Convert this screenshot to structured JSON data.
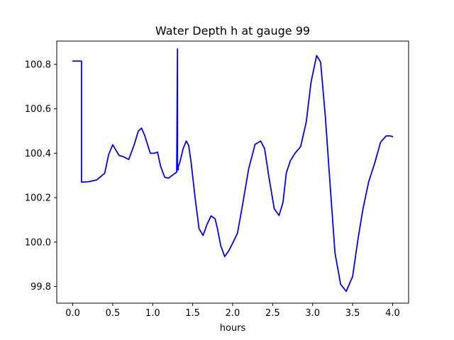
{
  "chart_data": {
    "type": "line",
    "title": "Water Depth h at gauge 99",
    "xlabel": "hours",
    "ylabel": "",
    "xlim": [
      -0.2,
      4.2
    ],
    "ylim": [
      99.725,
      100.905
    ],
    "xticks": [
      0.0,
      0.5,
      1.0,
      1.5,
      2.0,
      2.5,
      3.0,
      3.5,
      4.0
    ],
    "xtick_labels": [
      "0.0",
      "0.5",
      "1.0",
      "1.5",
      "2.0",
      "2.5",
      "3.0",
      "3.5",
      "4.0"
    ],
    "yticks": [
      99.8,
      100.0,
      100.2,
      100.4,
      100.6,
      100.8
    ],
    "ytick_labels": [
      "99.8",
      "100.0",
      "100.2",
      "100.4",
      "100.6",
      "100.8"
    ],
    "grid": false,
    "series": [
      {
        "color": "#0000ff",
        "x": [
          0.0,
          0.11,
          0.11,
          0.2,
          0.3,
          0.4,
          0.45,
          0.5,
          0.53,
          0.58,
          0.63,
          0.7,
          0.77,
          0.82,
          0.86,
          0.9,
          0.97,
          1.02,
          1.06,
          1.1,
          1.15,
          1.2,
          1.25,
          1.3,
          1.31,
          1.31,
          1.32,
          1.32,
          1.34,
          1.38,
          1.42,
          1.45,
          1.48,
          1.53,
          1.58,
          1.63,
          1.68,
          1.73,
          1.78,
          1.81,
          1.85,
          1.9,
          1.95,
          2.0,
          2.06,
          2.12,
          2.2,
          2.28,
          2.35,
          2.4,
          2.45,
          2.52,
          2.58,
          2.63,
          2.67,
          2.72,
          2.78,
          2.85,
          2.92,
          2.98,
          3.05,
          3.1,
          3.16,
          3.22,
          3.28,
          3.35,
          3.42,
          3.5,
          3.57,
          3.63,
          3.7,
          3.78,
          3.85,
          3.92,
          3.97,
          4.0
        ],
        "y": [
          100.815,
          100.815,
          100.27,
          100.272,
          100.28,
          100.31,
          100.395,
          100.438,
          100.42,
          100.39,
          100.385,
          100.372,
          100.44,
          100.5,
          100.513,
          100.48,
          100.4,
          100.4,
          100.405,
          100.34,
          100.292,
          100.288,
          100.302,
          100.315,
          100.87,
          100.325,
          100.325,
          100.34,
          100.36,
          100.42,
          100.455,
          100.435,
          100.36,
          100.2,
          100.06,
          100.03,
          100.08,
          100.118,
          100.105,
          100.06,
          99.985,
          99.935,
          99.96,
          99.995,
          100.04,
          100.16,
          100.33,
          100.44,
          100.455,
          100.42,
          100.3,
          100.15,
          100.12,
          100.18,
          100.31,
          100.365,
          100.4,
          100.43,
          100.54,
          100.72,
          100.84,
          100.81,
          100.56,
          100.25,
          99.95,
          99.81,
          99.778,
          99.845,
          100.02,
          100.15,
          100.27,
          100.36,
          100.45,
          100.478,
          100.478,
          100.475
        ]
      }
    ]
  }
}
